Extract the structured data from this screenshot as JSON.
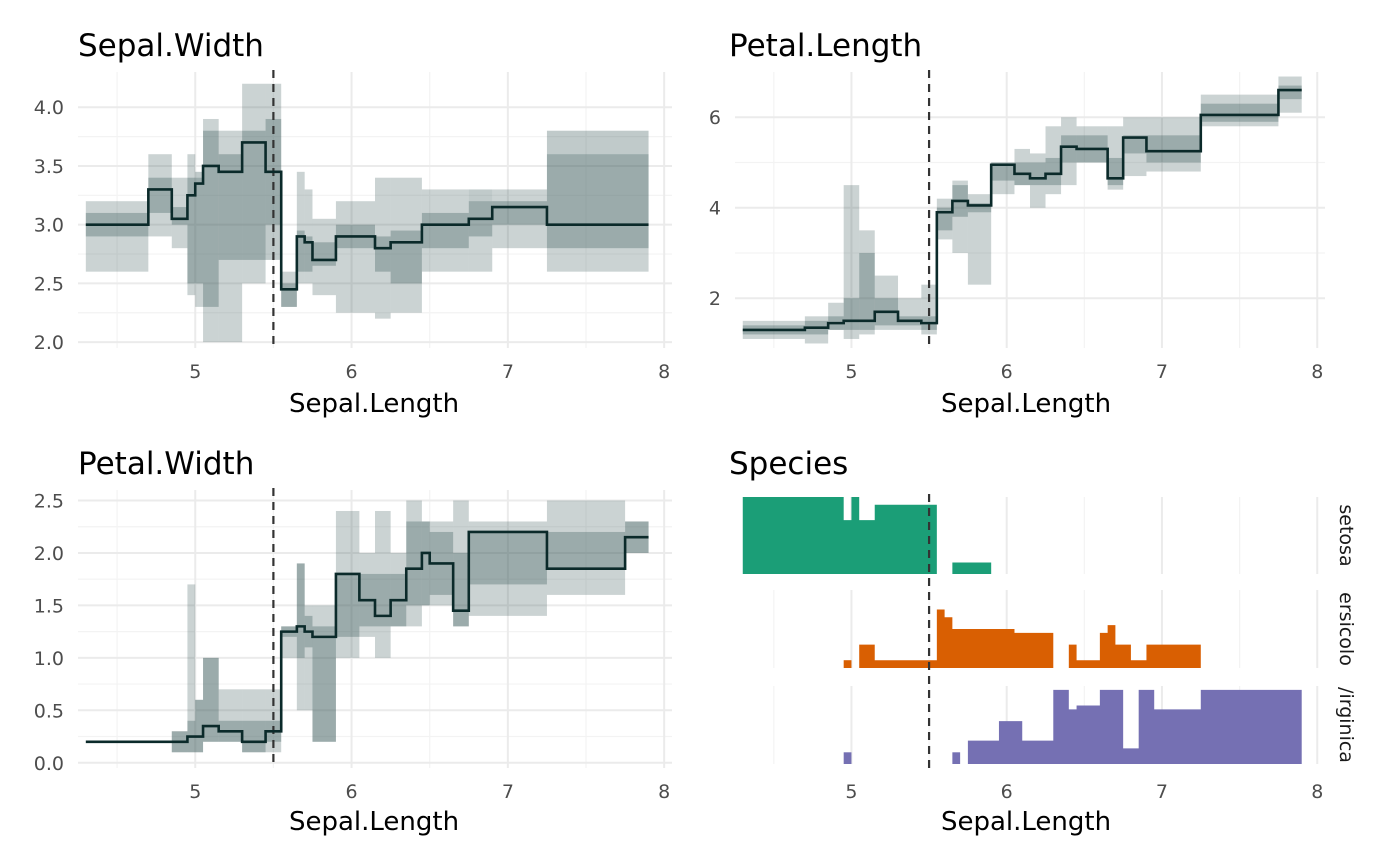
{
  "reference_x": 5.5,
  "colors": {
    "band": "#2f4f4f",
    "line": "#0b2a2a",
    "setosa": "#1b9e77",
    "versicolor": "#d95f02",
    "virginica": "#7570b3"
  },
  "chart_data": [
    {
      "type": "line",
      "title": "Sepal.Width",
      "xlabel": "Sepal.Length",
      "ylabel": "",
      "xlim": [
        4.25,
        8.05
      ],
      "ylim": [
        1.95,
        4.3
      ],
      "xticks": [
        5,
        6,
        7,
        8
      ],
      "xtick_labels": [
        "5",
        "6",
        "7",
        "8"
      ],
      "yticks": [
        2.0,
        2.5,
        3.0,
        3.5,
        4.0
      ],
      "ytick_labels": [
        "2.0",
        "2.5",
        "3.0",
        "3.5",
        "4.0"
      ],
      "grid": true,
      "step": [
        [
          4.3,
          3.0
        ],
        [
          4.7,
          3.3
        ],
        [
          4.85,
          3.05
        ],
        [
          4.95,
          3.25
        ],
        [
          5.0,
          3.35
        ],
        [
          5.05,
          3.5
        ],
        [
          5.15,
          3.45
        ],
        [
          5.3,
          3.7
        ],
        [
          5.45,
          3.45
        ],
        [
          5.55,
          2.45
        ],
        [
          5.65,
          2.9
        ],
        [
          5.7,
          2.85
        ],
        [
          5.75,
          2.7
        ],
        [
          5.9,
          2.9
        ],
        [
          6.15,
          2.8
        ],
        [
          6.25,
          2.85
        ],
        [
          6.45,
          3.0
        ],
        [
          6.75,
          3.05
        ],
        [
          6.9,
          3.15
        ],
        [
          7.25,
          3.0
        ],
        [
          7.9,
          3.0
        ]
      ],
      "outer_band": [
        [
          4.3,
          2.6,
          3.2
        ],
        [
          4.7,
          2.9,
          3.6
        ],
        [
          4.85,
          2.8,
          3.4
        ],
        [
          4.95,
          2.4,
          3.6
        ],
        [
          5.0,
          2.3,
          3.4
        ],
        [
          5.05,
          2.0,
          3.9
        ],
        [
          5.15,
          2.0,
          3.8
        ],
        [
          5.3,
          2.5,
          4.2
        ],
        [
          5.45,
          3.0,
          4.2
        ],
        [
          5.55,
          2.3,
          2.6
        ],
        [
          5.65,
          2.5,
          3.45
        ],
        [
          5.7,
          2.5,
          3.3
        ],
        [
          5.75,
          2.4,
          3.05
        ],
        [
          5.9,
          2.25,
          3.2
        ],
        [
          6.15,
          2.2,
          3.4
        ],
        [
          6.25,
          2.25,
          3.4
        ],
        [
          6.45,
          2.6,
          3.3
        ],
        [
          6.75,
          2.6,
          3.2
        ],
        [
          6.9,
          2.8,
          3.3
        ],
        [
          7.25,
          2.6,
          3.6
        ],
        [
          7.9,
          2.6,
          3.6
        ]
      ],
      "inner_band": [
        [
          4.3,
          2.9,
          3.1
        ],
        [
          4.7,
          3.1,
          3.4
        ],
        [
          4.85,
          3.0,
          3.15
        ],
        [
          4.95,
          2.5,
          3.4
        ],
        [
          5.0,
          2.5,
          3.45
        ],
        [
          5.05,
          2.3,
          3.8
        ],
        [
          5.15,
          2.7,
          3.6
        ],
        [
          5.3,
          2.7,
          3.8
        ],
        [
          5.45,
          2.7,
          3.9
        ],
        [
          5.55,
          2.3,
          2.5
        ],
        [
          5.65,
          2.6,
          2.95
        ],
        [
          5.7,
          2.6,
          2.9
        ],
        [
          5.75,
          2.65,
          2.85
        ],
        [
          5.9,
          2.8,
          3.0
        ],
        [
          6.15,
          2.6,
          2.9
        ],
        [
          6.25,
          2.5,
          2.95
        ],
        [
          6.45,
          2.8,
          3.1
        ],
        [
          6.75,
          2.9,
          3.3
        ],
        [
          6.9,
          3.0,
          3.2
        ],
        [
          7.25,
          2.8,
          3.8
        ],
        [
          7.9,
          2.8,
          3.8
        ]
      ]
    },
    {
      "type": "line",
      "title": "Petal.Length",
      "xlabel": "Sepal.Length",
      "ylabel": "",
      "xlim": [
        4.25,
        8.05
      ],
      "ylim": [
        0.9,
        7.0
      ],
      "xticks": [
        5,
        6,
        7,
        8
      ],
      "xtick_labels": [
        "5",
        "6",
        "7",
        "8"
      ],
      "yticks": [
        2,
        4,
        6
      ],
      "ytick_labels": [
        "2",
        "4",
        "6"
      ],
      "grid": true,
      "step": [
        [
          4.3,
          1.3
        ],
        [
          4.7,
          1.35
        ],
        [
          4.85,
          1.45
        ],
        [
          4.95,
          1.5
        ],
        [
          5.05,
          1.5
        ],
        [
          5.15,
          1.7
        ],
        [
          5.3,
          1.5
        ],
        [
          5.45,
          1.45
        ],
        [
          5.55,
          3.9
        ],
        [
          5.65,
          4.15
        ],
        [
          5.75,
          4.05
        ],
        [
          5.9,
          4.95
        ],
        [
          6.05,
          4.75
        ],
        [
          6.15,
          4.65
        ],
        [
          6.25,
          4.75
        ],
        [
          6.35,
          5.35
        ],
        [
          6.45,
          5.3
        ],
        [
          6.65,
          4.65
        ],
        [
          6.75,
          5.55
        ],
        [
          6.9,
          5.25
        ],
        [
          7.25,
          6.05
        ],
        [
          7.75,
          6.6
        ],
        [
          7.9,
          6.6
        ]
      ],
      "outer_band": [
        [
          4.3,
          1.1,
          1.5
        ],
        [
          4.7,
          1.0,
          1.6
        ],
        [
          4.85,
          1.3,
          1.9
        ],
        [
          4.95,
          1.1,
          4.5
        ],
        [
          5.05,
          1.2,
          3.5
        ],
        [
          5.15,
          1.3,
          2.5
        ],
        [
          5.3,
          1.3,
          2.0
        ],
        [
          5.45,
          1.2,
          2.3
        ],
        [
          5.55,
          3.3,
          4.2
        ],
        [
          5.65,
          3.0,
          4.6
        ],
        [
          5.75,
          2.3,
          4.3
        ],
        [
          5.9,
          4.3,
          5.0
        ],
        [
          6.05,
          4.5,
          5.3
        ],
        [
          6.15,
          4.0,
          5.2
        ],
        [
          6.25,
          4.3,
          5.8
        ],
        [
          6.35,
          4.5,
          6.0
        ],
        [
          6.45,
          5.0,
          5.8
        ],
        [
          6.65,
          4.4,
          5.8
        ],
        [
          6.75,
          4.7,
          6.0
        ],
        [
          6.9,
          4.8,
          6.0
        ],
        [
          7.25,
          5.8,
          6.5
        ],
        [
          7.75,
          6.1,
          6.9
        ],
        [
          7.9,
          6.1,
          6.9
        ]
      ],
      "inner_band": [
        [
          4.3,
          1.2,
          1.4
        ],
        [
          4.7,
          1.2,
          1.5
        ],
        [
          4.85,
          1.3,
          1.6
        ],
        [
          4.95,
          1.3,
          2.0
        ],
        [
          5.05,
          1.3,
          3.0
        ],
        [
          5.15,
          1.4,
          2.0
        ],
        [
          5.3,
          1.4,
          1.6
        ],
        [
          5.45,
          1.3,
          1.6
        ],
        [
          5.55,
          3.5,
          4.0
        ],
        [
          5.65,
          3.8,
          4.5
        ],
        [
          5.75,
          3.9,
          4.1
        ],
        [
          5.9,
          4.6,
          5.0
        ],
        [
          6.05,
          4.5,
          5.0
        ],
        [
          6.15,
          4.5,
          5.0
        ],
        [
          6.25,
          4.5,
          5.1
        ],
        [
          6.35,
          5.0,
          5.6
        ],
        [
          6.45,
          5.0,
          5.6
        ],
        [
          6.65,
          4.5,
          5.1
        ],
        [
          6.75,
          5.2,
          5.6
        ],
        [
          6.9,
          5.0,
          5.6
        ],
        [
          7.25,
          5.9,
          6.3
        ],
        [
          7.75,
          6.4,
          6.7
        ],
        [
          7.9,
          6.4,
          6.7
        ]
      ]
    },
    {
      "type": "line",
      "title": "Petal.Width",
      "xlabel": "Sepal.Length",
      "ylabel": "",
      "xlim": [
        4.25,
        8.05
      ],
      "ylim": [
        -0.05,
        2.6
      ],
      "xticks": [
        5,
        6,
        7,
        8
      ],
      "xtick_labels": [
        "5",
        "6",
        "7",
        "8"
      ],
      "yticks": [
        0.0,
        0.5,
        1.0,
        1.5,
        2.0,
        2.5
      ],
      "ytick_labels": [
        "0.0",
        "0.5",
        "1.0",
        "1.5",
        "2.0",
        "2.5"
      ],
      "grid": true,
      "step": [
        [
          4.3,
          0.2
        ],
        [
          4.95,
          0.25
        ],
        [
          5.05,
          0.35
        ],
        [
          5.15,
          0.3
        ],
        [
          5.3,
          0.2
        ],
        [
          5.45,
          0.3
        ],
        [
          5.55,
          1.25
        ],
        [
          5.65,
          1.3
        ],
        [
          5.7,
          1.25
        ],
        [
          5.75,
          1.2
        ],
        [
          5.9,
          1.8
        ],
        [
          6.05,
          1.55
        ],
        [
          6.15,
          1.4
        ],
        [
          6.25,
          1.55
        ],
        [
          6.35,
          1.85
        ],
        [
          6.45,
          2.0
        ],
        [
          6.5,
          1.9
        ],
        [
          6.65,
          1.45
        ],
        [
          6.75,
          2.2
        ],
        [
          7.25,
          1.85
        ],
        [
          7.75,
          2.15
        ],
        [
          7.9,
          2.15
        ]
      ],
      "outer_band": [
        [
          4.3,
          0.2,
          0.2
        ],
        [
          4.85,
          0.1,
          0.3
        ],
        [
          4.95,
          0.1,
          1.7
        ],
        [
          5.0,
          0.1,
          0.6
        ],
        [
          5.05,
          0.2,
          1.0
        ],
        [
          5.15,
          0.2,
          0.7
        ],
        [
          5.3,
          0.1,
          0.7
        ],
        [
          5.45,
          0.1,
          0.7
        ],
        [
          5.55,
          1.0,
          1.3
        ],
        [
          5.65,
          0.5,
          1.9
        ],
        [
          5.7,
          0.5,
          1.5
        ],
        [
          5.75,
          0.2,
          1.5
        ],
        [
          5.9,
          1.0,
          2.4
        ],
        [
          6.05,
          1.2,
          2.0
        ],
        [
          6.15,
          1.0,
          2.4
        ],
        [
          6.25,
          1.3,
          2.0
        ],
        [
          6.35,
          1.3,
          2.5
        ],
        [
          6.45,
          1.5,
          2.3
        ],
        [
          6.5,
          1.5,
          2.3
        ],
        [
          6.65,
          1.3,
          2.5
        ],
        [
          6.75,
          1.4,
          2.3
        ],
        [
          7.25,
          1.6,
          2.5
        ],
        [
          7.75,
          2.0,
          2.3
        ],
        [
          7.9,
          2.0,
          2.3
        ]
      ],
      "inner_band": [
        [
          4.3,
          0.2,
          0.2
        ],
        [
          4.85,
          0.1,
          0.3
        ],
        [
          4.95,
          0.1,
          0.4
        ],
        [
          5.0,
          0.1,
          0.6
        ],
        [
          5.05,
          0.2,
          1.0
        ],
        [
          5.15,
          0.2,
          0.4
        ],
        [
          5.3,
          0.1,
          0.4
        ],
        [
          5.45,
          0.2,
          0.4
        ],
        [
          5.55,
          1.2,
          1.3
        ],
        [
          5.65,
          1.0,
          1.9
        ],
        [
          5.7,
          1.1,
          1.4
        ],
        [
          5.75,
          0.2,
          1.3
        ],
        [
          5.9,
          1.2,
          1.8
        ],
        [
          6.05,
          1.3,
          1.8
        ],
        [
          6.15,
          1.3,
          1.8
        ],
        [
          6.25,
          1.3,
          1.8
        ],
        [
          6.35,
          1.5,
          2.3
        ],
        [
          6.45,
          1.5,
          2.3
        ],
        [
          6.5,
          1.6,
          2.2
        ],
        [
          6.65,
          1.3,
          2.0
        ],
        [
          6.75,
          1.7,
          2.2
        ],
        [
          7.25,
          1.85,
          2.2
        ],
        [
          7.75,
          2.0,
          2.3
        ],
        [
          7.9,
          2.0,
          2.3
        ]
      ]
    },
    {
      "type": "area",
      "title": "Species",
      "xlabel": "Sepal.Length",
      "ylabel": "",
      "xlim": [
        4.25,
        8.05
      ],
      "xticks": [
        5,
        6,
        7,
        8
      ],
      "xtick_labels": [
        "5",
        "6",
        "7",
        "8"
      ],
      "grid": true,
      "facet_labels": [
        "setosa",
        "ersicolo",
        "/irginica"
      ],
      "series": [
        {
          "name": "setosa",
          "segments": [
            [
              [
                4.3,
                1.0
              ],
              [
                4.95,
                0.7
              ],
              [
                5.0,
                1.0
              ],
              [
                5.05,
                0.7
              ],
              [
                5.15,
                0.9
              ],
              [
                5.55,
                0.0
              ]
            ],
            [
              [
                5.65,
                0.15
              ],
              [
                5.9,
                0.0
              ]
            ]
          ]
        },
        {
          "name": "versicolor",
          "segments": [
            [
              [
                4.95,
                0.1
              ],
              [
                5.0,
                0.0
              ]
            ],
            [
              [
                5.05,
                0.3
              ],
              [
                5.15,
                0.1
              ],
              [
                5.55,
                0.75
              ],
              [
                5.6,
                0.65
              ],
              [
                5.65,
                0.5
              ],
              [
                5.75,
                0.5
              ],
              [
                6.05,
                0.45
              ],
              [
                6.2,
                0.45
              ],
              [
                6.3,
                0.0
              ]
            ],
            [
              [
                6.4,
                0.3
              ],
              [
                6.45,
                0.1
              ],
              [
                6.6,
                0.45
              ],
              [
                6.65,
                0.55
              ],
              [
                6.7,
                0.3
              ],
              [
                6.8,
                0.1
              ],
              [
                6.9,
                0.3
              ],
              [
                7.25,
                0.0
              ]
            ]
          ]
        },
        {
          "name": "virginica",
          "segments": [
            [
              [
                4.95,
                0.15
              ],
              [
                5.0,
                0.0
              ]
            ],
            [
              [
                5.65,
                0.15
              ],
              [
                5.7,
                0.0
              ]
            ],
            [
              [
                5.75,
                0.3
              ],
              [
                5.95,
                0.55
              ],
              [
                6.1,
                0.3
              ],
              [
                6.3,
                0.95
              ],
              [
                6.4,
                0.7
              ],
              [
                6.45,
                0.75
              ],
              [
                6.6,
                0.95
              ],
              [
                6.75,
                0.2
              ],
              [
                6.85,
                0.95
              ],
              [
                6.95,
                0.7
              ],
              [
                7.25,
                0.95
              ],
              [
                7.9,
                0.0
              ]
            ]
          ]
        }
      ]
    }
  ]
}
